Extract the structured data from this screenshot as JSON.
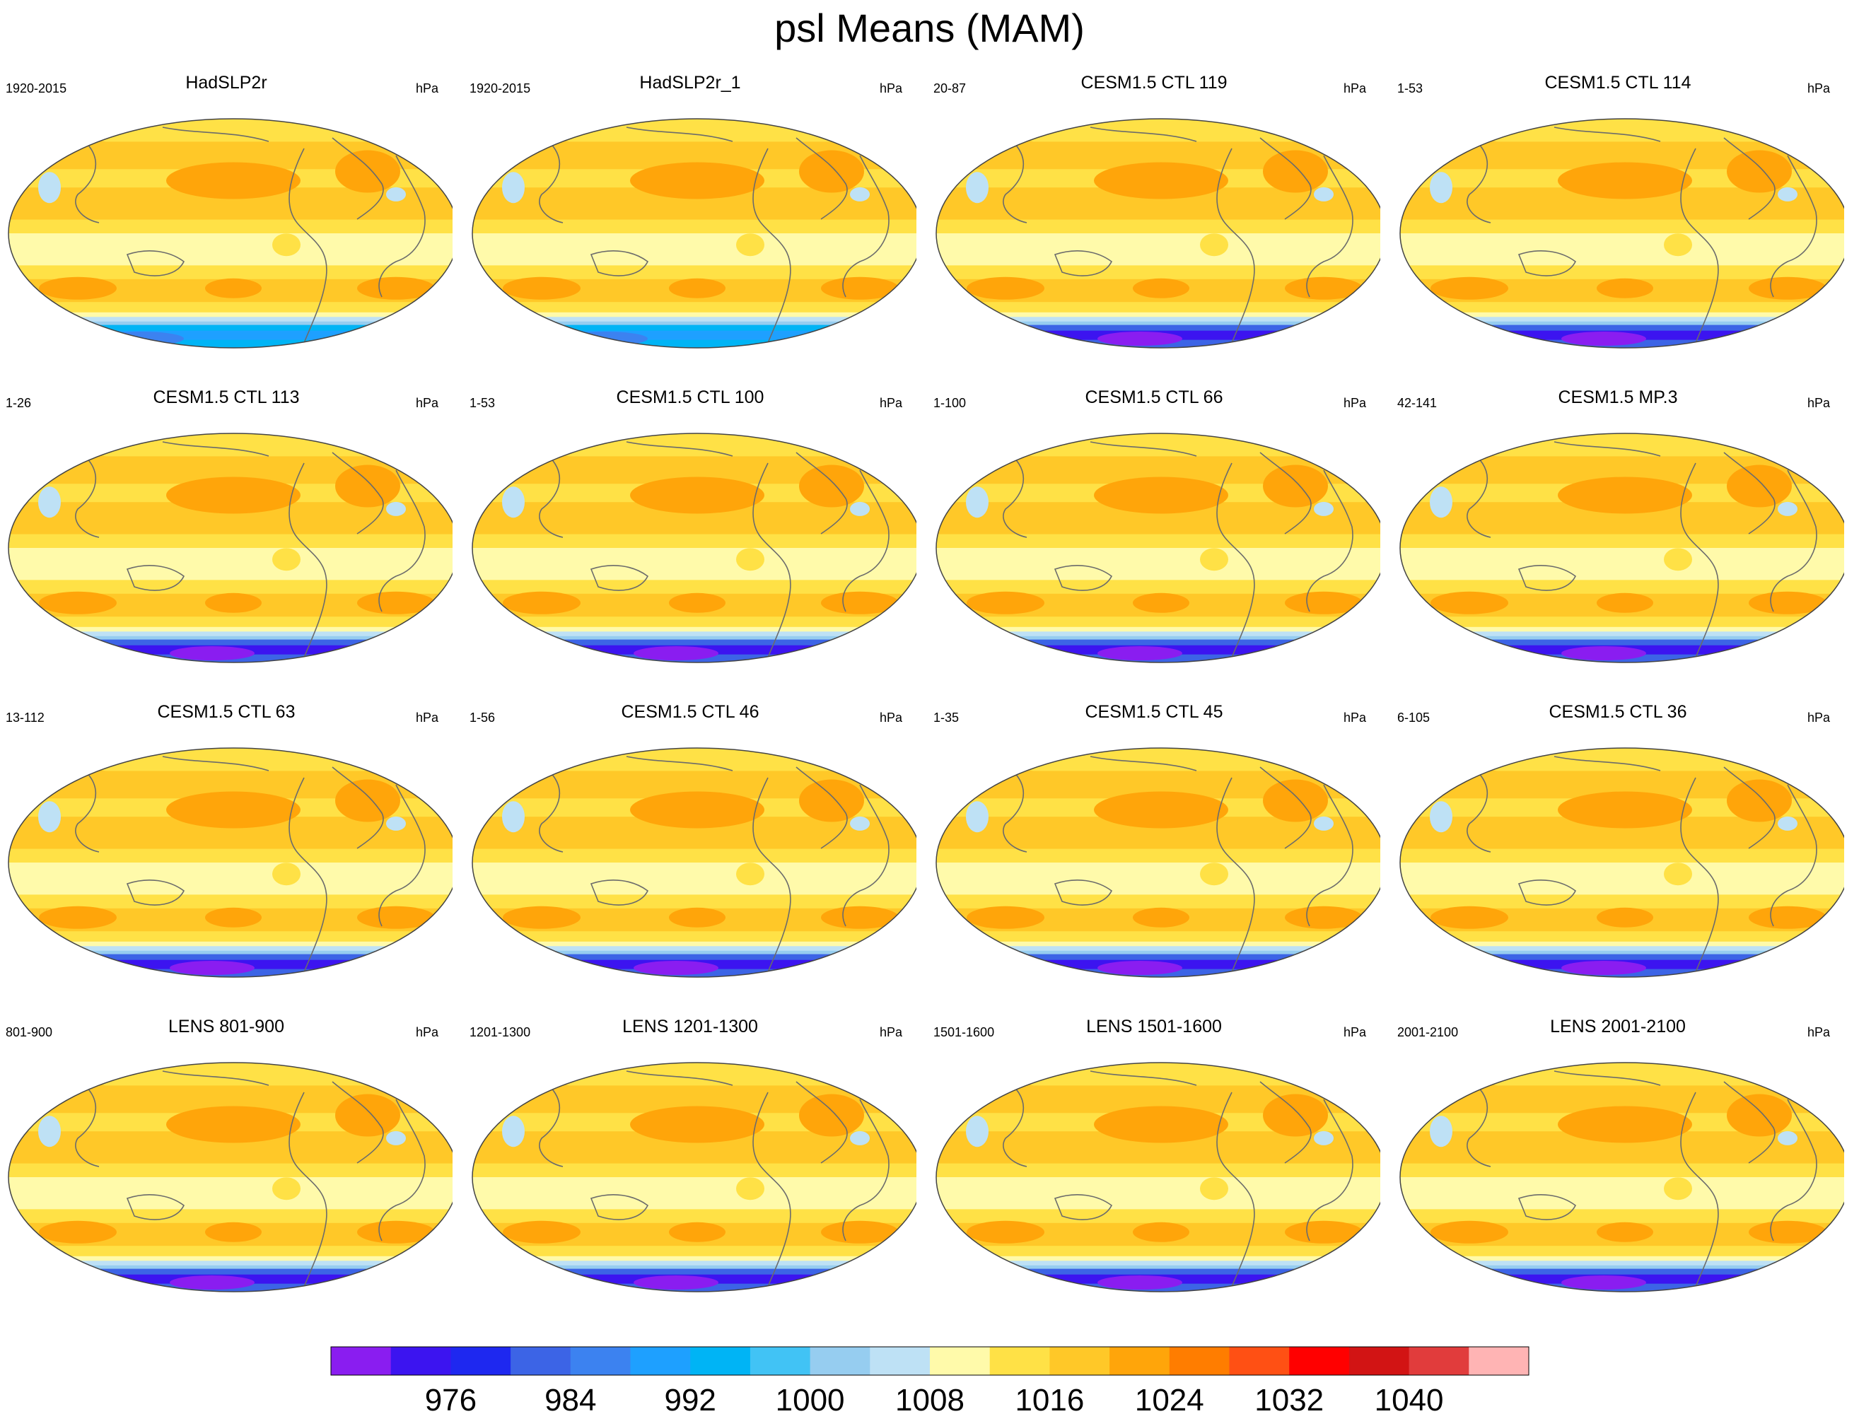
{
  "title": "psl Means (MAM)",
  "colors": {
    "levels": [
      "#8a1df0",
      "#3c14f0",
      "#1e28f0",
      "#3c64e6",
      "#3c82f0",
      "#1ea0ff",
      "#00b4f5",
      "#41c3f5",
      "#96cdf0",
      "#bee1f5",
      "#fffaaa",
      "#ffe146",
      "#ffc828",
      "#ffa50a",
      "#ff7d00",
      "#ff5014",
      "#ff0000",
      "#d21414",
      "#e13c3c",
      "#ffb4b4"
    ],
    "coast": "#6b6b6b"
  },
  "chart_data": {
    "type": "heatmap",
    "units": "hPa",
    "colorbar": {
      "tick_labels": [
        "976",
        "984",
        "992",
        "1000",
        "1008",
        "1016",
        "1024",
        "1032",
        "1040"
      ],
      "n_bins": 20
    },
    "panels": [
      {
        "title": "HadSLP2r",
        "period": "1920-2015",
        "units": "hPa"
      },
      {
        "title": "HadSLP2r_1",
        "period": "1920-2015",
        "units": "hPa"
      },
      {
        "title": "CESM1.5 CTL 119",
        "period": "20-87",
        "units": "hPa"
      },
      {
        "title": "CESM1.5 CTL 114",
        "period": "1-53",
        "units": "hPa"
      },
      {
        "title": "CESM1.5 CTL 113",
        "period": "1-26",
        "units": "hPa"
      },
      {
        "title": "CESM1.5 CTL 100",
        "period": "1-53",
        "units": "hPa"
      },
      {
        "title": "CESM1.5 CTL 66",
        "period": "1-100",
        "units": "hPa"
      },
      {
        "title": "CESM1.5 MP.3",
        "period": "42-141",
        "units": "hPa"
      },
      {
        "title": "CESM1.5 CTL 63",
        "period": "13-112",
        "units": "hPa"
      },
      {
        "title": "CESM1.5 CTL 46",
        "period": "1-56",
        "units": "hPa"
      },
      {
        "title": "CESM1.5 CTL 45",
        "period": "1-35",
        "units": "hPa"
      },
      {
        "title": "CESM1.5 CTL 36",
        "period": "6-105",
        "units": "hPa"
      },
      {
        "title": "LENS 801-900",
        "period": "801-900",
        "units": "hPa"
      },
      {
        "title": "LENS 1201-1300",
        "period": "1201-1300",
        "units": "hPa"
      },
      {
        "title": "LENS 1501-1600",
        "period": "1501-1600",
        "units": "hPa"
      },
      {
        "title": "LENS 2001-2100",
        "period": "2001-2100",
        "units": "hPa"
      }
    ]
  }
}
